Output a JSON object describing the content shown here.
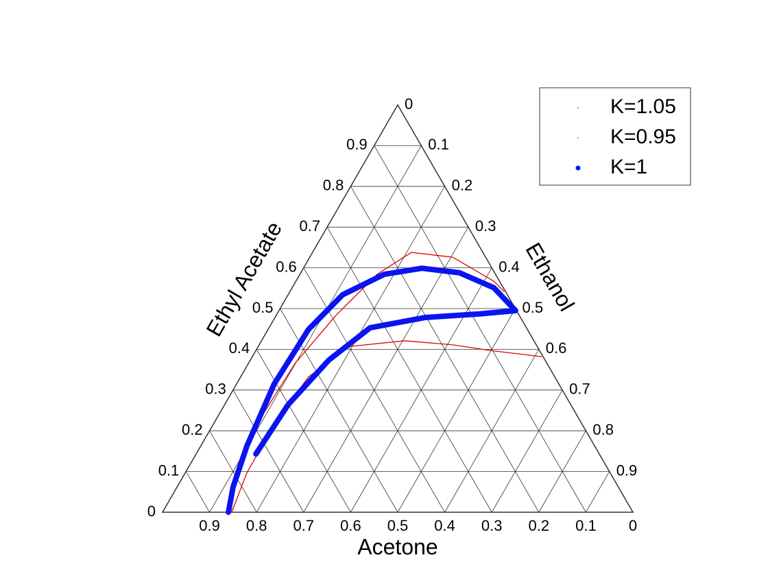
{
  "chart_data": {
    "type": "ternary",
    "bottom_axis": {
      "label": "Acetone",
      "ticks": [
        0.9,
        0.8,
        0.7,
        0.6,
        0.5,
        0.4,
        0.3,
        0.2,
        0.1,
        0
      ]
    },
    "left_axis": {
      "label": "Ethyl Acetate",
      "ticks": [
        0,
        0.1,
        0.2,
        0.3,
        0.4,
        0.5,
        0.6,
        0.7,
        0.8,
        0.9
      ]
    },
    "right_axis": {
      "label": "Ethanol",
      "ticks": [
        0,
        0.1,
        0.2,
        0.3,
        0.4,
        0.5,
        0.6,
        0.7,
        0.8,
        0.9
      ]
    },
    "grid": true,
    "legend": "upper right",
    "series": [
      {
        "name": "K=1.05",
        "color": "#e00000",
        "acetone": [
          0.864,
          0.795,
          0.676,
          0.536,
          0.39,
          0.252,
          0.152,
          0.07,
          0.012,
          0.003
        ],
        "ethyl_acetate": [
          0,
          0.096,
          0.231,
          0.365,
          0.483,
          0.584,
          0.638,
          0.626,
          0.567,
          0.542
        ]
      },
      {
        "name": "K=0.95",
        "color": "#e00000",
        "acetone": [
          0.853,
          0.773,
          0.656,
          0.524,
          0.398,
          0.275,
          0.178,
          0.098,
          0.003
        ],
        "ethyl_acetate": [
          0,
          0.096,
          0.214,
          0.332,
          0.407,
          0.421,
          0.411,
          0.396,
          0.382
        ]
      },
      {
        "name": "K=1",
        "color": "#0a14f0",
        "acetone": [
          0.73,
          0.601,
          0.459,
          0.332,
          0.203,
          0.082,
          0.002,
          0.02,
          0.075,
          0.149,
          0.237,
          0.35,
          0.465,
          0.605,
          0.739,
          0.819,
          0.86
        ],
        "ethyl_acetate": [
          0.143,
          0.264,
          0.374,
          0.453,
          0.478,
          0.487,
          0.495,
          0.551,
          0.588,
          0.599,
          0.584,
          0.534,
          0.449,
          0.315,
          0.163,
          0.062,
          0
        ]
      }
    ]
  }
}
